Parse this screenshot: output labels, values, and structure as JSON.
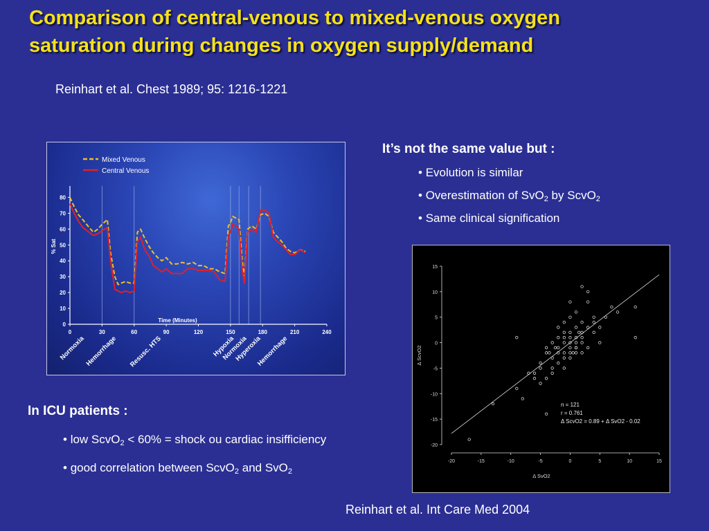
{
  "slide": {
    "title_line1": "Comparison of central-venous to mixed-venous oxygen",
    "title_line2": "saturation during changes in oxygen supply/demand",
    "reference_top": "Reinhart et al. Chest 1989; 95: 1216-1221",
    "reference_bottom": "Reinhart et al. Int Care Med 2004",
    "colors": {
      "background": "#2b2f93",
      "title": "#f5e11a",
      "text": "#ffffff"
    }
  },
  "notes": {
    "heading": "It’s not the same value but :",
    "items": [
      {
        "bullet": "•",
        "parts": [
          "Evolution is similar"
        ]
      },
      {
        "bullet": "•",
        "parts": [
          "Overestimation of SvO",
          "2",
          " by ScvO",
          "2"
        ]
      },
      {
        "bullet": "•",
        "parts": [
          "Same clinical signification"
        ]
      }
    ]
  },
  "icu": {
    "heading": "In ICU patients :",
    "items": [
      {
        "bullet": "•",
        "parts": [
          "low ScvO",
          "2",
          " < 60% = shock ou cardiac insifficiency"
        ]
      },
      {
        "bullet": "•",
        "parts": [
          "good correlation between ScvO",
          "2",
          " and SvO",
          "2"
        ]
      }
    ]
  },
  "chart_data": [
    {
      "type": "line",
      "xlabel": "Time (Minutes)",
      "ylabel": "% Sat",
      "xlim": [
        0,
        240
      ],
      "ylim": [
        0,
        85
      ],
      "xticks": [
        "0",
        "30",
        "60",
        "90",
        "120",
        "150",
        "180",
        "210",
        "240"
      ],
      "yticks": [
        "0",
        "10",
        "20",
        "30",
        "40",
        "50",
        "60",
        "70",
        "80"
      ],
      "grid": "vertical event lines",
      "legend_position": "top-left",
      "event_lines_x": [
        30,
        60,
        150,
        158,
        167,
        178
      ],
      "events": [
        {
          "label": "Normoxia",
          "x": 10
        },
        {
          "label": "Hemorrhage",
          "x": 40
        },
        {
          "label": "Resusc. HTS",
          "x": 82
        },
        {
          "label": "Hypoxia",
          "x": 150
        },
        {
          "label": "Normoxia",
          "x": 162
        },
        {
          "label": "Hyperoxia",
          "x": 175
        },
        {
          "label": "Hemorrhage",
          "x": 200
        }
      ],
      "series": [
        {
          "name": "Mixed Venous",
          "color": "#f0c020",
          "style": "dashed",
          "x": [
            0,
            4,
            8,
            12,
            18,
            22,
            26,
            30,
            35,
            38,
            42,
            45,
            48,
            52,
            56,
            60,
            63,
            66,
            70,
            74,
            78,
            82,
            86,
            90,
            95,
            100,
            105,
            110,
            115,
            120,
            125,
            130,
            135,
            140,
            145,
            148,
            150,
            152,
            155,
            158,
            161,
            163,
            166,
            170,
            174,
            178,
            182,
            186,
            190,
            194,
            198,
            202,
            206,
            210,
            215,
            220
          ],
          "values": [
            80,
            74,
            69,
            66,
            61,
            58,
            60,
            63,
            66,
            45,
            30,
            25,
            26,
            27,
            26,
            26,
            58,
            60,
            54,
            49,
            45,
            42,
            40,
            42,
            38,
            38,
            39,
            38,
            39,
            37,
            37,
            35,
            35,
            33,
            32,
            62,
            64,
            68,
            67,
            66,
            40,
            30,
            60,
            62,
            60,
            69,
            70,
            68,
            58,
            55,
            52,
            48,
            46,
            45,
            47,
            46
          ]
        },
        {
          "name": "Central Venous",
          "color": "#e0202a",
          "style": "solid",
          "x": [
            0,
            4,
            8,
            12,
            18,
            22,
            26,
            30,
            35,
            38,
            42,
            45,
            48,
            52,
            56,
            60,
            63,
            66,
            70,
            74,
            78,
            82,
            86,
            90,
            95,
            100,
            105,
            110,
            115,
            120,
            125,
            130,
            135,
            140,
            145,
            148,
            150,
            152,
            155,
            158,
            161,
            163,
            166,
            170,
            174,
            178,
            182,
            186,
            190,
            194,
            198,
            202,
            206,
            210,
            215,
            220
          ],
          "values": [
            76,
            70,
            65,
            61,
            58,
            56,
            57,
            59,
            61,
            40,
            22,
            21,
            20,
            21,
            20,
            21,
            52,
            55,
            47,
            43,
            37,
            35,
            33,
            35,
            32,
            32,
            32,
            35,
            35,
            34,
            34,
            34,
            33,
            28,
            27,
            56,
            58,
            63,
            62,
            60,
            34,
            26,
            58,
            60,
            58,
            72,
            72,
            70,
            55,
            52,
            50,
            47,
            44,
            44,
            47,
            45
          ]
        }
      ]
    },
    {
      "type": "scatter",
      "xlabel": "Δ SvO2",
      "ylabel": "Δ ScvO2",
      "xlim": [
        -20,
        15
      ],
      "ylim": [
        -20,
        15
      ],
      "xticks": [
        "-20",
        "-15",
        "-10",
        "-5",
        "0",
        "5",
        "10",
        "15"
      ],
      "yticks": [
        "-20",
        "-15",
        "-10",
        "-5",
        "0",
        "5",
        "10",
        "15"
      ],
      "grid": false,
      "annotations": [
        "n = 121",
        "r = 0.761",
        "Δ ScvO2 = 0.89 + Δ SvO2 - 0.02"
      ],
      "fit_line": {
        "x": [
          -20,
          15
        ],
        "y": [
          -17.82,
          13.33
        ]
      },
      "x": [
        -17,
        -13,
        -9,
        -8,
        -7,
        -6,
        -6,
        -5,
        -5,
        -5,
        -4,
        -4,
        -4,
        -3,
        -3,
        -3,
        -3,
        -2,
        -2,
        -2,
        -2,
        -2,
        -1,
        -1,
        -1,
        -1,
        -1,
        -1,
        0,
        0,
        0,
        0,
        0,
        0,
        0,
        1,
        1,
        1,
        1,
        1,
        1,
        2,
        2,
        2,
        2,
        2,
        3,
        3,
        3,
        4,
        4,
        4,
        5,
        5,
        6,
        7,
        8,
        11,
        11,
        -4,
        -9,
        2,
        3,
        -1,
        0,
        1,
        1.5,
        -2.5,
        -3.5,
        0.5
      ],
      "y": [
        -19,
        -12,
        -9,
        -11,
        -6,
        -6,
        -7,
        -5,
        -4,
        -8,
        -14,
        -2,
        -1,
        -3,
        0,
        -6,
        -5,
        -2,
        1,
        -4,
        3,
        -1,
        -2,
        0,
        2,
        -3,
        4,
        1,
        -1,
        0,
        2,
        -2,
        5,
        -3,
        8,
        0,
        3,
        -2,
        6,
        1,
        -1,
        11,
        2,
        0,
        4,
        1,
        3,
        8,
        -1,
        2,
        4,
        5,
        3,
        0,
        5,
        7,
        6,
        7,
        1,
        -7,
        1,
        -2,
        10,
        -5,
        1,
        -1,
        2,
        -1,
        -2,
        -2
      ]
    }
  ]
}
